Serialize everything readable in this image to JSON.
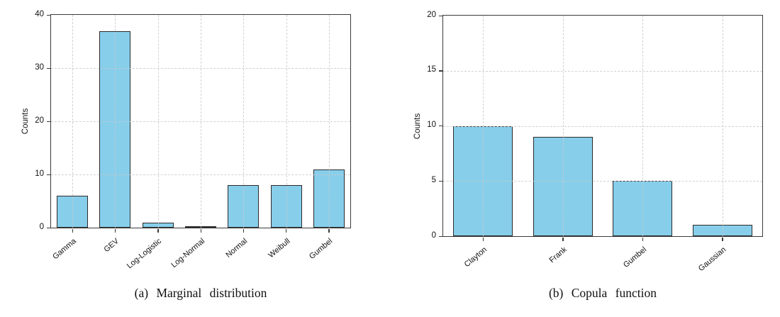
{
  "figure": {
    "background": "#ffffff"
  },
  "chart_data": [
    {
      "type": "bar",
      "title": "",
      "categories": [
        "Gamma",
        "GEV",
        "Log-Logistic",
        "Log-Normal",
        "Normal",
        "Weibull",
        "Gumbel"
      ],
      "values": [
        6,
        37,
        1,
        0,
        8,
        8,
        11
      ],
      "xlabel": "",
      "ylabel": "Counts",
      "yticks": [
        0,
        10,
        20,
        30,
        40
      ],
      "ylim": [
        0,
        40
      ],
      "caption": "(a) Marginal distribution",
      "bar_color": "#87CEEB",
      "bar_edge_color": "#2b2b2b",
      "grid": true,
      "grid_style": "dashed",
      "legend": "none",
      "xtick_rotation": -40
    },
    {
      "type": "bar",
      "title": "",
      "categories": [
        "Clayton",
        "Frank",
        "Gumbel",
        "Gaussian"
      ],
      "values": [
        10,
        9,
        5,
        1
      ],
      "xlabel": "",
      "ylabel": "Counts",
      "yticks": [
        0,
        5,
        10,
        15,
        20
      ],
      "ylim": [
        0,
        20
      ],
      "caption": "(b) Copula function",
      "bar_color": "#87CEEB",
      "bar_edge_color": "#2b2b2b",
      "grid": true,
      "grid_style": "dashed",
      "legend": "none",
      "xtick_rotation": -40
    }
  ]
}
